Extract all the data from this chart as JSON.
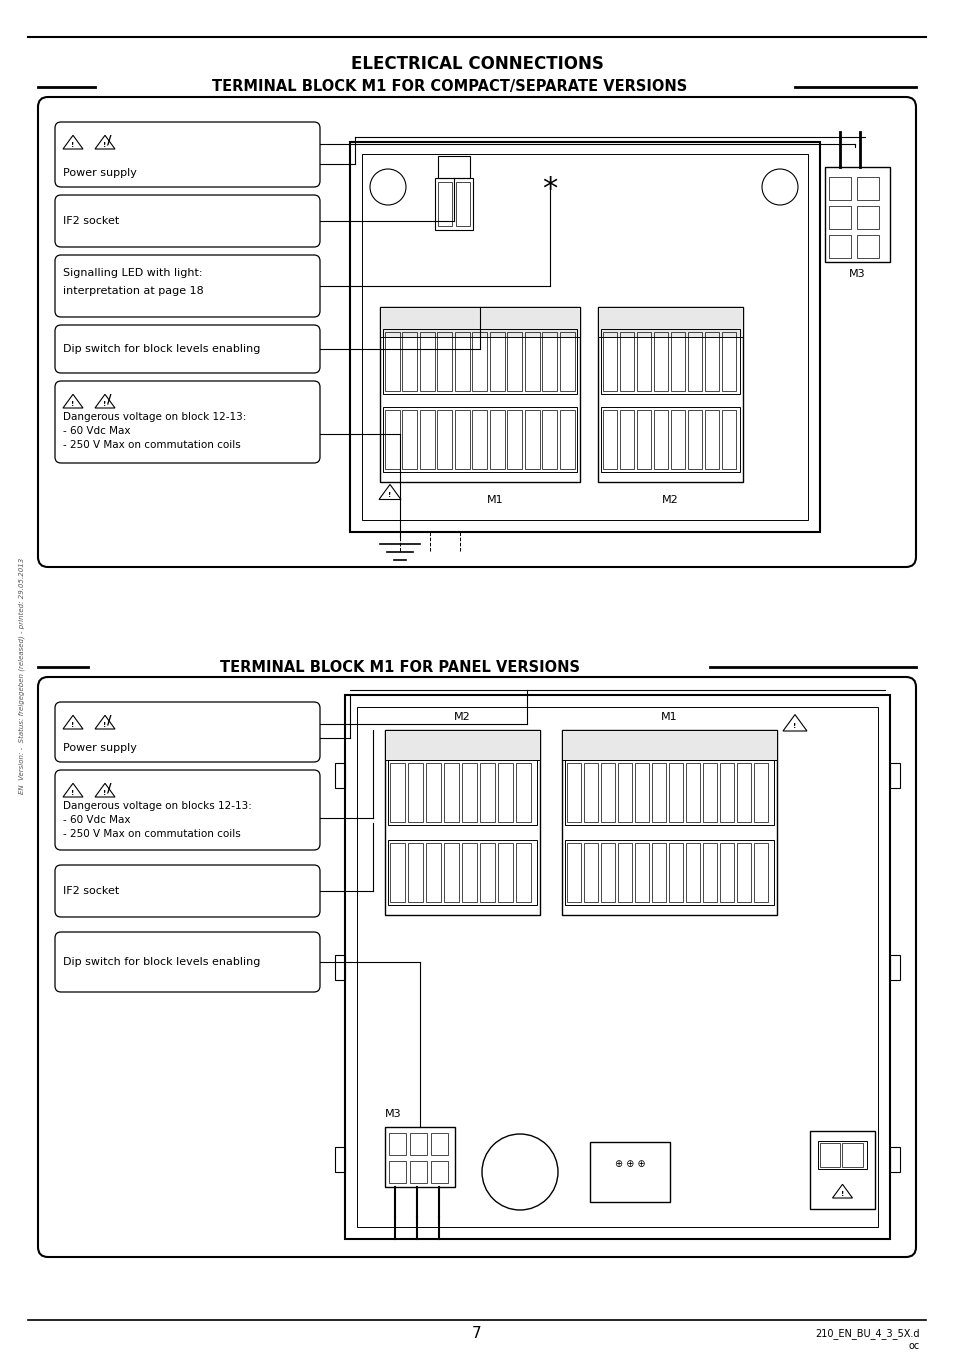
{
  "title_text": "ELECTRICAL CONNECTIONS",
  "section1_title": "TERMINAL BLOCK M1 FOR COMPACT/SEPARATE VERSIONS",
  "section2_title": "TERMINAL BLOCK M1 FOR PANEL VERSIONS",
  "footer_page": "7",
  "footer_doc": "210_EN_BU_4_3_5X.d",
  "footer_doc2": "oc",
  "bg_color": "#ffffff",
  "watermark_text": "EN  Version: -  Status: freigegeben (released) - printed: 29.05.2013"
}
